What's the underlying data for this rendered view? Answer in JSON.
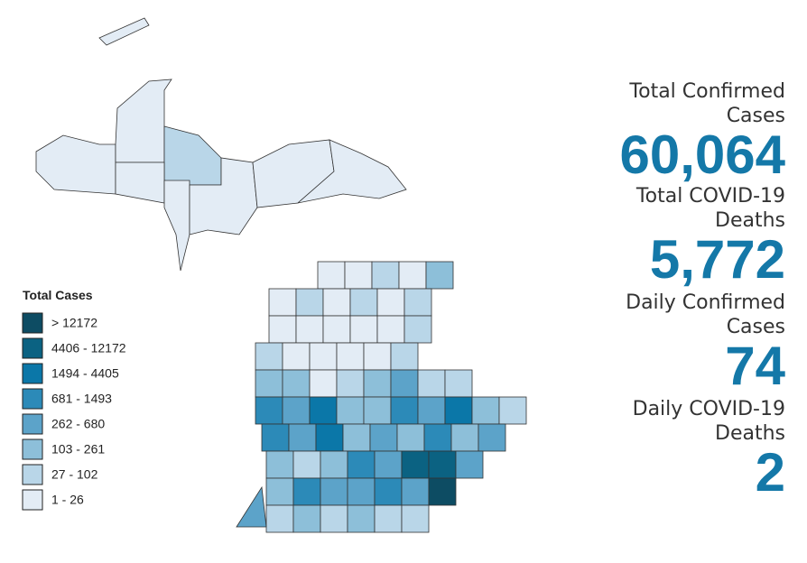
{
  "legend": {
    "title": "Total Cases",
    "items": [
      {
        "label": "> 12172",
        "color": "#0d4c63"
      },
      {
        "label": "4406 - 12172",
        "color": "#0b6282"
      },
      {
        "label": "1494 - 4405",
        "color": "#0b77a8"
      },
      {
        "label": "681 - 1493",
        "color": "#2c8ab8"
      },
      {
        "label": "262 - 680",
        "color": "#5ca3c9"
      },
      {
        "label": "103 - 261",
        "color": "#8dbfd9"
      },
      {
        "label": "27 - 102",
        "color": "#b9d6e8"
      },
      {
        "label": "1 - 26",
        "color": "#e3ecf5"
      }
    ]
  },
  "stats": [
    {
      "label": [
        "Total Confirmed",
        "Cases"
      ],
      "value": "60,064"
    },
    {
      "label": [
        "Total COVID-19",
        "Deaths"
      ],
      "value": "5,772"
    },
    {
      "label": [
        "Daily Confirmed",
        "Cases"
      ],
      "value": "74"
    },
    {
      "label": [
        "Daily COVID-19",
        "Deaths"
      ],
      "value": "2"
    }
  ]
}
